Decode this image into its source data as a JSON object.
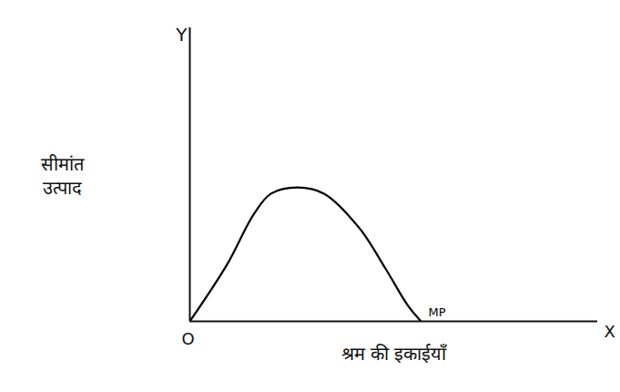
{
  "chart_data": {
    "type": "line",
    "xlabel": "श्रम की इकाईयाँ",
    "ylabel": "सीमांत उत्पाद",
    "axis_names": {
      "x": "X",
      "y": "Y"
    },
    "origin_label": "O",
    "x": [
      0,
      0.91,
      1.56,
      1.99,
      2.64,
      3.29,
      4.16,
      4.81,
      5.35,
      5.67
    ],
    "series": [
      {
        "name": "MP",
        "color": "#000000",
        "values": [
          0,
          1.93,
          3.63,
          4.35,
          4.56,
          4.35,
          3.17,
          1.77,
          0.53,
          0
        ]
      }
    ],
    "xlim": [
      0,
      10
    ],
    "ylim": [
      0,
      10
    ],
    "xticks": [],
    "yticks": [],
    "tick_labels": false,
    "grid": false
  }
}
